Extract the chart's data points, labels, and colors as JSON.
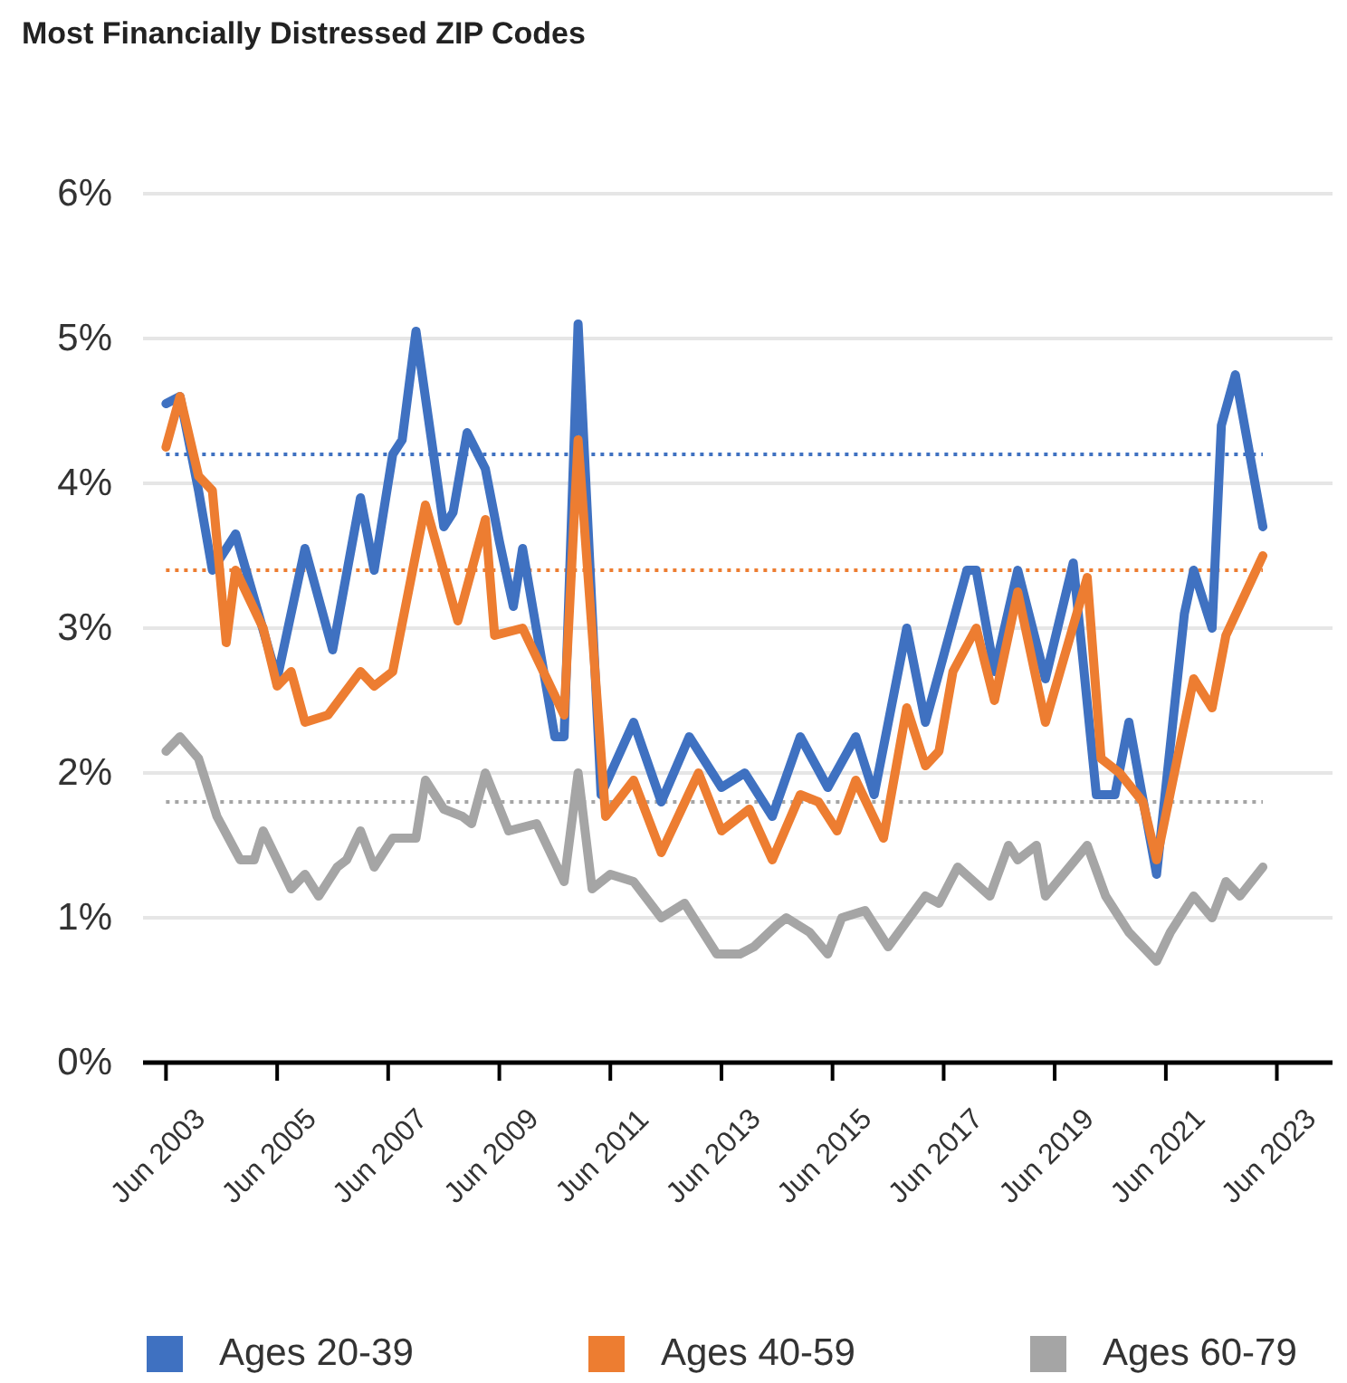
{
  "chart_data": {
    "type": "line",
    "title": "Most Financially Distressed ZIP Codes",
    "xlim": [
      "2003-01",
      "2024-06"
    ],
    "xticks": [
      {
        "value": "2003-06",
        "label": "Jun 2003"
      },
      {
        "value": "2005-06",
        "label": "Jun 2005"
      },
      {
        "value": "2007-06",
        "label": "Jun 2007"
      },
      {
        "value": "2009-06",
        "label": "Jun 2009"
      },
      {
        "value": "2011-06",
        "label": "Jun 2011"
      },
      {
        "value": "2013-06",
        "label": "Jun 2013"
      },
      {
        "value": "2015-06",
        "label": "Jun 2015"
      },
      {
        "value": "2017-06",
        "label": "Jun 2017"
      },
      {
        "value": "2019-06",
        "label": "Jun 2019"
      },
      {
        "value": "2021-06",
        "label": "Jun 2021"
      },
      {
        "value": "2023-06",
        "label": "Jun 2023"
      }
    ],
    "ylim": [
      0,
      6
    ],
    "yticks": [
      {
        "value": 0,
        "label": "0%"
      },
      {
        "value": 1,
        "label": "1%"
      },
      {
        "value": 2,
        "label": "2%"
      },
      {
        "value": 3,
        "label": "3%"
      },
      {
        "value": 4,
        "label": "4%"
      },
      {
        "value": 5,
        "label": "5%"
      },
      {
        "value": 6,
        "label": "6%"
      }
    ],
    "grid": "y",
    "legend": "bottom",
    "marker": "none",
    "series": [
      {
        "name": "Ages 20-39",
        "color": "#3f71c1",
        "x": [
          "2003-06",
          "2003-09",
          "2004-01",
          "2004-04",
          "2004-09",
          "2005-06",
          "2005-12",
          "2006-06",
          "2006-12",
          "2007-03",
          "2007-07",
          "2007-09",
          "2007-12",
          "2008-06",
          "2008-08",
          "2008-11",
          "2009-03",
          "2009-06",
          "2009-09",
          "2009-11",
          "2010-06",
          "2010-08",
          "2010-11",
          "2011-04",
          "2011-11",
          "2012-05",
          "2012-11",
          "2013-06",
          "2013-11",
          "2014-05",
          "2014-11",
          "2015-05",
          "2015-11",
          "2016-03",
          "2016-10",
          "2017-02",
          "2017-11",
          "2018-01",
          "2018-05",
          "2018-10",
          "2019-04",
          "2019-10",
          "2020-03",
          "2020-07",
          "2020-10",
          "2021-04",
          "2021-10",
          "2021-12",
          "2022-04",
          "2022-06",
          "2022-09",
          "2023-03"
        ],
        "values": [
          4.55,
          4.6,
          3.95,
          3.4,
          3.65,
          2.65,
          3.55,
          2.85,
          3.9,
          3.4,
          4.2,
          4.3,
          5.05,
          3.7,
          3.8,
          4.35,
          4.1,
          3.6,
          3.15,
          3.55,
          2.25,
          2.25,
          5.1,
          1.85,
          2.35,
          1.8,
          2.25,
          1.9,
          2.0,
          1.7,
          2.25,
          1.9,
          2.25,
          1.85,
          3.0,
          2.35,
          3.4,
          3.4,
          2.7,
          3.4,
          2.65,
          3.45,
          1.85,
          1.85,
          2.35,
          1.3,
          3.1,
          3.4,
          3.0,
          4.4,
          4.75,
          3.7
        ]
      },
      {
        "name": "Ages 40-59",
        "color": "#ed7d31",
        "x": [
          "2003-06",
          "2003-09",
          "2004-01",
          "2004-04",
          "2004-07",
          "2004-09",
          "2005-03",
          "2005-06",
          "2005-09",
          "2005-12",
          "2006-05",
          "2006-12",
          "2007-03",
          "2007-07",
          "2008-02",
          "2008-09",
          "2009-03",
          "2009-05",
          "2009-11",
          "2010-08",
          "2010-11",
          "2011-05",
          "2011-11",
          "2012-05",
          "2013-01",
          "2013-06",
          "2013-12",
          "2014-05",
          "2014-11",
          "2015-03",
          "2015-07",
          "2015-11",
          "2016-05",
          "2016-10",
          "2017-02",
          "2017-05",
          "2017-08",
          "2018-01",
          "2018-05",
          "2018-10",
          "2019-04",
          "2020-01",
          "2020-04",
          "2020-08",
          "2021-01",
          "2021-04",
          "2021-12",
          "2022-04",
          "2022-07",
          "2023-03"
        ],
        "values": [
          4.25,
          4.6,
          4.05,
          3.95,
          2.9,
          3.4,
          3.0,
          2.6,
          2.7,
          2.35,
          2.4,
          2.7,
          2.6,
          2.7,
          3.85,
          3.05,
          3.75,
          2.95,
          3.0,
          2.4,
          4.3,
          1.7,
          1.95,
          1.45,
          2.0,
          1.6,
          1.75,
          1.4,
          1.85,
          1.8,
          1.6,
          1.95,
          1.55,
          2.45,
          2.05,
          2.15,
          2.7,
          3.0,
          2.5,
          3.25,
          2.35,
          3.35,
          2.1,
          2.0,
          1.8,
          1.4,
          2.65,
          2.45,
          2.95,
          3.5
        ]
      },
      {
        "name": "Ages 60-79",
        "color": "#a5a5a5",
        "x": [
          "2003-06",
          "2003-09",
          "2004-01",
          "2004-05",
          "2004-10",
          "2005-01",
          "2005-03",
          "2005-09",
          "2005-12",
          "2006-03",
          "2006-07",
          "2006-09",
          "2006-12",
          "2007-03",
          "2007-07",
          "2007-12",
          "2008-02",
          "2008-06",
          "2008-10",
          "2008-12",
          "2009-03",
          "2009-08",
          "2010-02",
          "2010-08",
          "2010-11",
          "2011-02",
          "2011-06",
          "2011-11",
          "2012-05",
          "2012-10",
          "2013-05",
          "2013-10",
          "2014-01",
          "2014-06",
          "2014-08",
          "2015-01",
          "2015-05",
          "2015-08",
          "2016-01",
          "2016-06",
          "2017-02",
          "2017-05",
          "2017-09",
          "2018-04",
          "2018-08",
          "2018-10",
          "2019-02",
          "2019-04",
          "2020-01",
          "2020-05",
          "2020-10",
          "2021-04",
          "2021-07",
          "2021-12",
          "2022-04",
          "2022-07",
          "2022-10",
          "2023-03"
        ],
        "values": [
          2.15,
          2.25,
          2.1,
          1.7,
          1.4,
          1.4,
          1.6,
          1.2,
          1.3,
          1.15,
          1.35,
          1.4,
          1.6,
          1.35,
          1.55,
          1.55,
          1.95,
          1.75,
          1.7,
          1.65,
          2.0,
          1.6,
          1.65,
          1.25,
          2.0,
          1.2,
          1.3,
          1.25,
          1.0,
          1.1,
          0.75,
          0.75,
          0.8,
          0.95,
          1.0,
          0.9,
          0.75,
          1.0,
          1.05,
          0.8,
          1.15,
          1.1,
          1.35,
          1.15,
          1.5,
          1.4,
          1.5,
          1.15,
          1.5,
          1.15,
          0.9,
          0.7,
          0.9,
          1.15,
          1.0,
          1.25,
          1.15,
          1.35
        ]
      }
    ],
    "ref_lines": [
      {
        "axis": "y",
        "value": 4.2,
        "color": "#3f71c1",
        "line_style": "dotted"
      },
      {
        "axis": "y",
        "value": 3.4,
        "color": "#ed7d31",
        "line_style": "dotted"
      },
      {
        "axis": "y",
        "value": 1.8,
        "color": "#a5a5a5",
        "line_style": "dotted"
      }
    ]
  }
}
